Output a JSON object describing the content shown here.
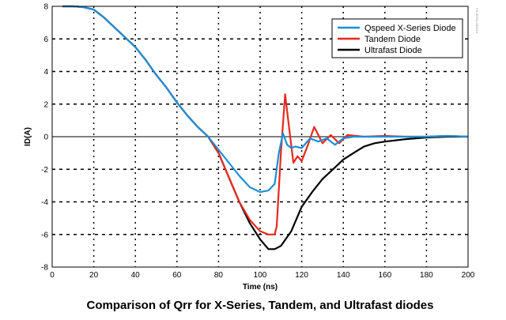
{
  "chart_data": {
    "type": "line",
    "title": "Comparison of Qrr for X-Series, Tandem, and Ultrafast diodes",
    "xlabel": "Time (ns)",
    "ylabel": "ID(A)",
    "xlim": [
      0,
      200
    ],
    "ylim": [
      -8,
      8
    ],
    "xticks": [
      0,
      20,
      40,
      60,
      80,
      100,
      120,
      140,
      160,
      180,
      200
    ],
    "yticks": [
      -8,
      -6,
      -4,
      -2,
      0,
      2,
      4,
      6,
      8
    ],
    "grid": true,
    "legend_position": "top-right",
    "watermark": "PS-8036x-080116",
    "series": [
      {
        "name": "Qspeed X-Series Diode",
        "color": "#1a8fd8",
        "x": [
          5,
          10,
          15,
          20,
          25,
          30,
          35,
          40,
          45,
          50,
          55,
          60,
          65,
          70,
          75,
          80,
          85,
          90,
          95,
          100,
          104,
          107,
          109,
          111,
          113,
          115,
          117,
          120,
          124,
          128,
          132,
          136,
          140,
          145,
          150,
          160,
          170,
          180,
          190,
          200
        ],
        "y": [
          8,
          8,
          7.95,
          7.8,
          7.3,
          6.7,
          6.1,
          5.5,
          4.7,
          3.8,
          3.0,
          2.1,
          1.3,
          0.6,
          0,
          -0.8,
          -1.6,
          -2.4,
          -3.1,
          -3.4,
          -3.3,
          -2.9,
          -1.0,
          0.2,
          -0.5,
          -0.7,
          -0.6,
          -0.7,
          -0.1,
          -0.3,
          -0.1,
          -0.5,
          -0.1,
          0,
          0,
          0,
          0,
          0,
          0.05,
          0
        ]
      },
      {
        "name": "Tandem Diode",
        "color": "#e8281e",
        "x": [
          5,
          10,
          15,
          20,
          25,
          30,
          35,
          40,
          45,
          50,
          55,
          60,
          65,
          70,
          75,
          80,
          85,
          90,
          95,
          100,
          104,
          107,
          108,
          110,
          112,
          114,
          116,
          118,
          120,
          123,
          126,
          130,
          134,
          138,
          142,
          150,
          160,
          170,
          180,
          190,
          200
        ],
        "y": [
          8,
          8,
          7.95,
          7.8,
          7.3,
          6.7,
          6.1,
          5.5,
          4.7,
          3.8,
          3.0,
          2.1,
          1.3,
          0.6,
          0,
          -1.0,
          -2.5,
          -4.0,
          -5.1,
          -5.8,
          -6.0,
          -6.0,
          -5.5,
          -1.0,
          2.6,
          0.5,
          -1.6,
          -1.2,
          -1.5,
          -0.5,
          0.6,
          -0.4,
          0.1,
          -0.4,
          0.1,
          0,
          0.05,
          0,
          0,
          0.05,
          0
        ]
      },
      {
        "name": "Ultrafast Diode",
        "color": "#000000",
        "x": [
          5,
          10,
          15,
          20,
          25,
          30,
          35,
          40,
          45,
          50,
          55,
          60,
          65,
          70,
          75,
          80,
          85,
          90,
          95,
          100,
          104,
          107,
          110,
          115,
          120,
          125,
          130,
          135,
          140,
          145,
          150,
          155,
          160,
          170,
          180,
          190,
          200
        ],
        "y": [
          8,
          8,
          7.95,
          7.8,
          7.3,
          6.7,
          6.1,
          5.5,
          4.7,
          3.8,
          3.0,
          2.1,
          1.3,
          0.6,
          0,
          -1.0,
          -2.5,
          -4.0,
          -5.3,
          -6.3,
          -6.9,
          -6.9,
          -6.7,
          -5.8,
          -4.3,
          -3.4,
          -2.6,
          -2.0,
          -1.4,
          -1.0,
          -0.6,
          -0.4,
          -0.3,
          -0.15,
          -0.05,
          0,
          0
        ]
      }
    ]
  }
}
